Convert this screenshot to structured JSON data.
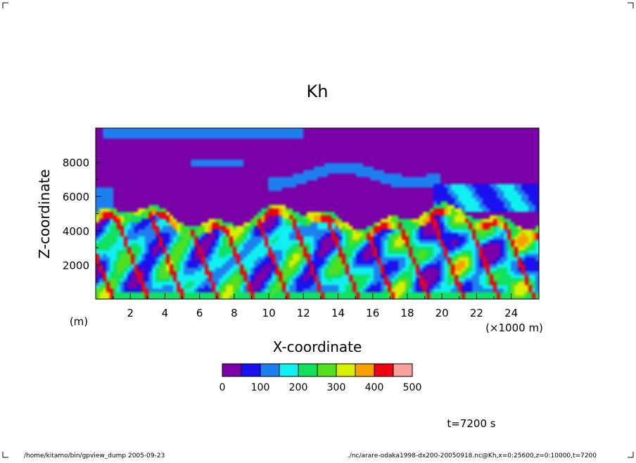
{
  "chart_data": {
    "type": "heatmap",
    "title": "Kh",
    "xlabel": "X-coordinate",
    "ylabel": "Z-coordinate",
    "x_unit": "(m)",
    "x_scale_label": "(×1000 m)",
    "xlim": [
      0,
      25.6
    ],
    "ylim": [
      0,
      10000
    ],
    "x_ticks": [
      "2",
      "4",
      "6",
      "8",
      "10",
      "12",
      "14",
      "16",
      "18",
      "20",
      "22",
      "24"
    ],
    "y_ticks": [
      "2000",
      "4000",
      "6000",
      "8000"
    ],
    "colorbar": {
      "levels": [
        "0",
        "100",
        "200",
        "300",
        "400",
        "500"
      ],
      "colors": [
        "#7a00a8",
        "#1a10f0",
        "#1e80f0",
        "#10f0f0",
        "#10e060",
        "#50e020",
        "#d8f000",
        "#f8a000",
        "#f00010",
        "#f8a0a0"
      ]
    },
    "time_label": "t=7200 s",
    "footer_left": "/home/kitamo/bin/gpview_dump  2005-09-23",
    "footer_right": "./nc/arare-odaka1998-dx200-20050918.nc@Kh,x=0:25600,z=0:10000,t=7200",
    "grid": false,
    "legend_position": "bottom"
  }
}
